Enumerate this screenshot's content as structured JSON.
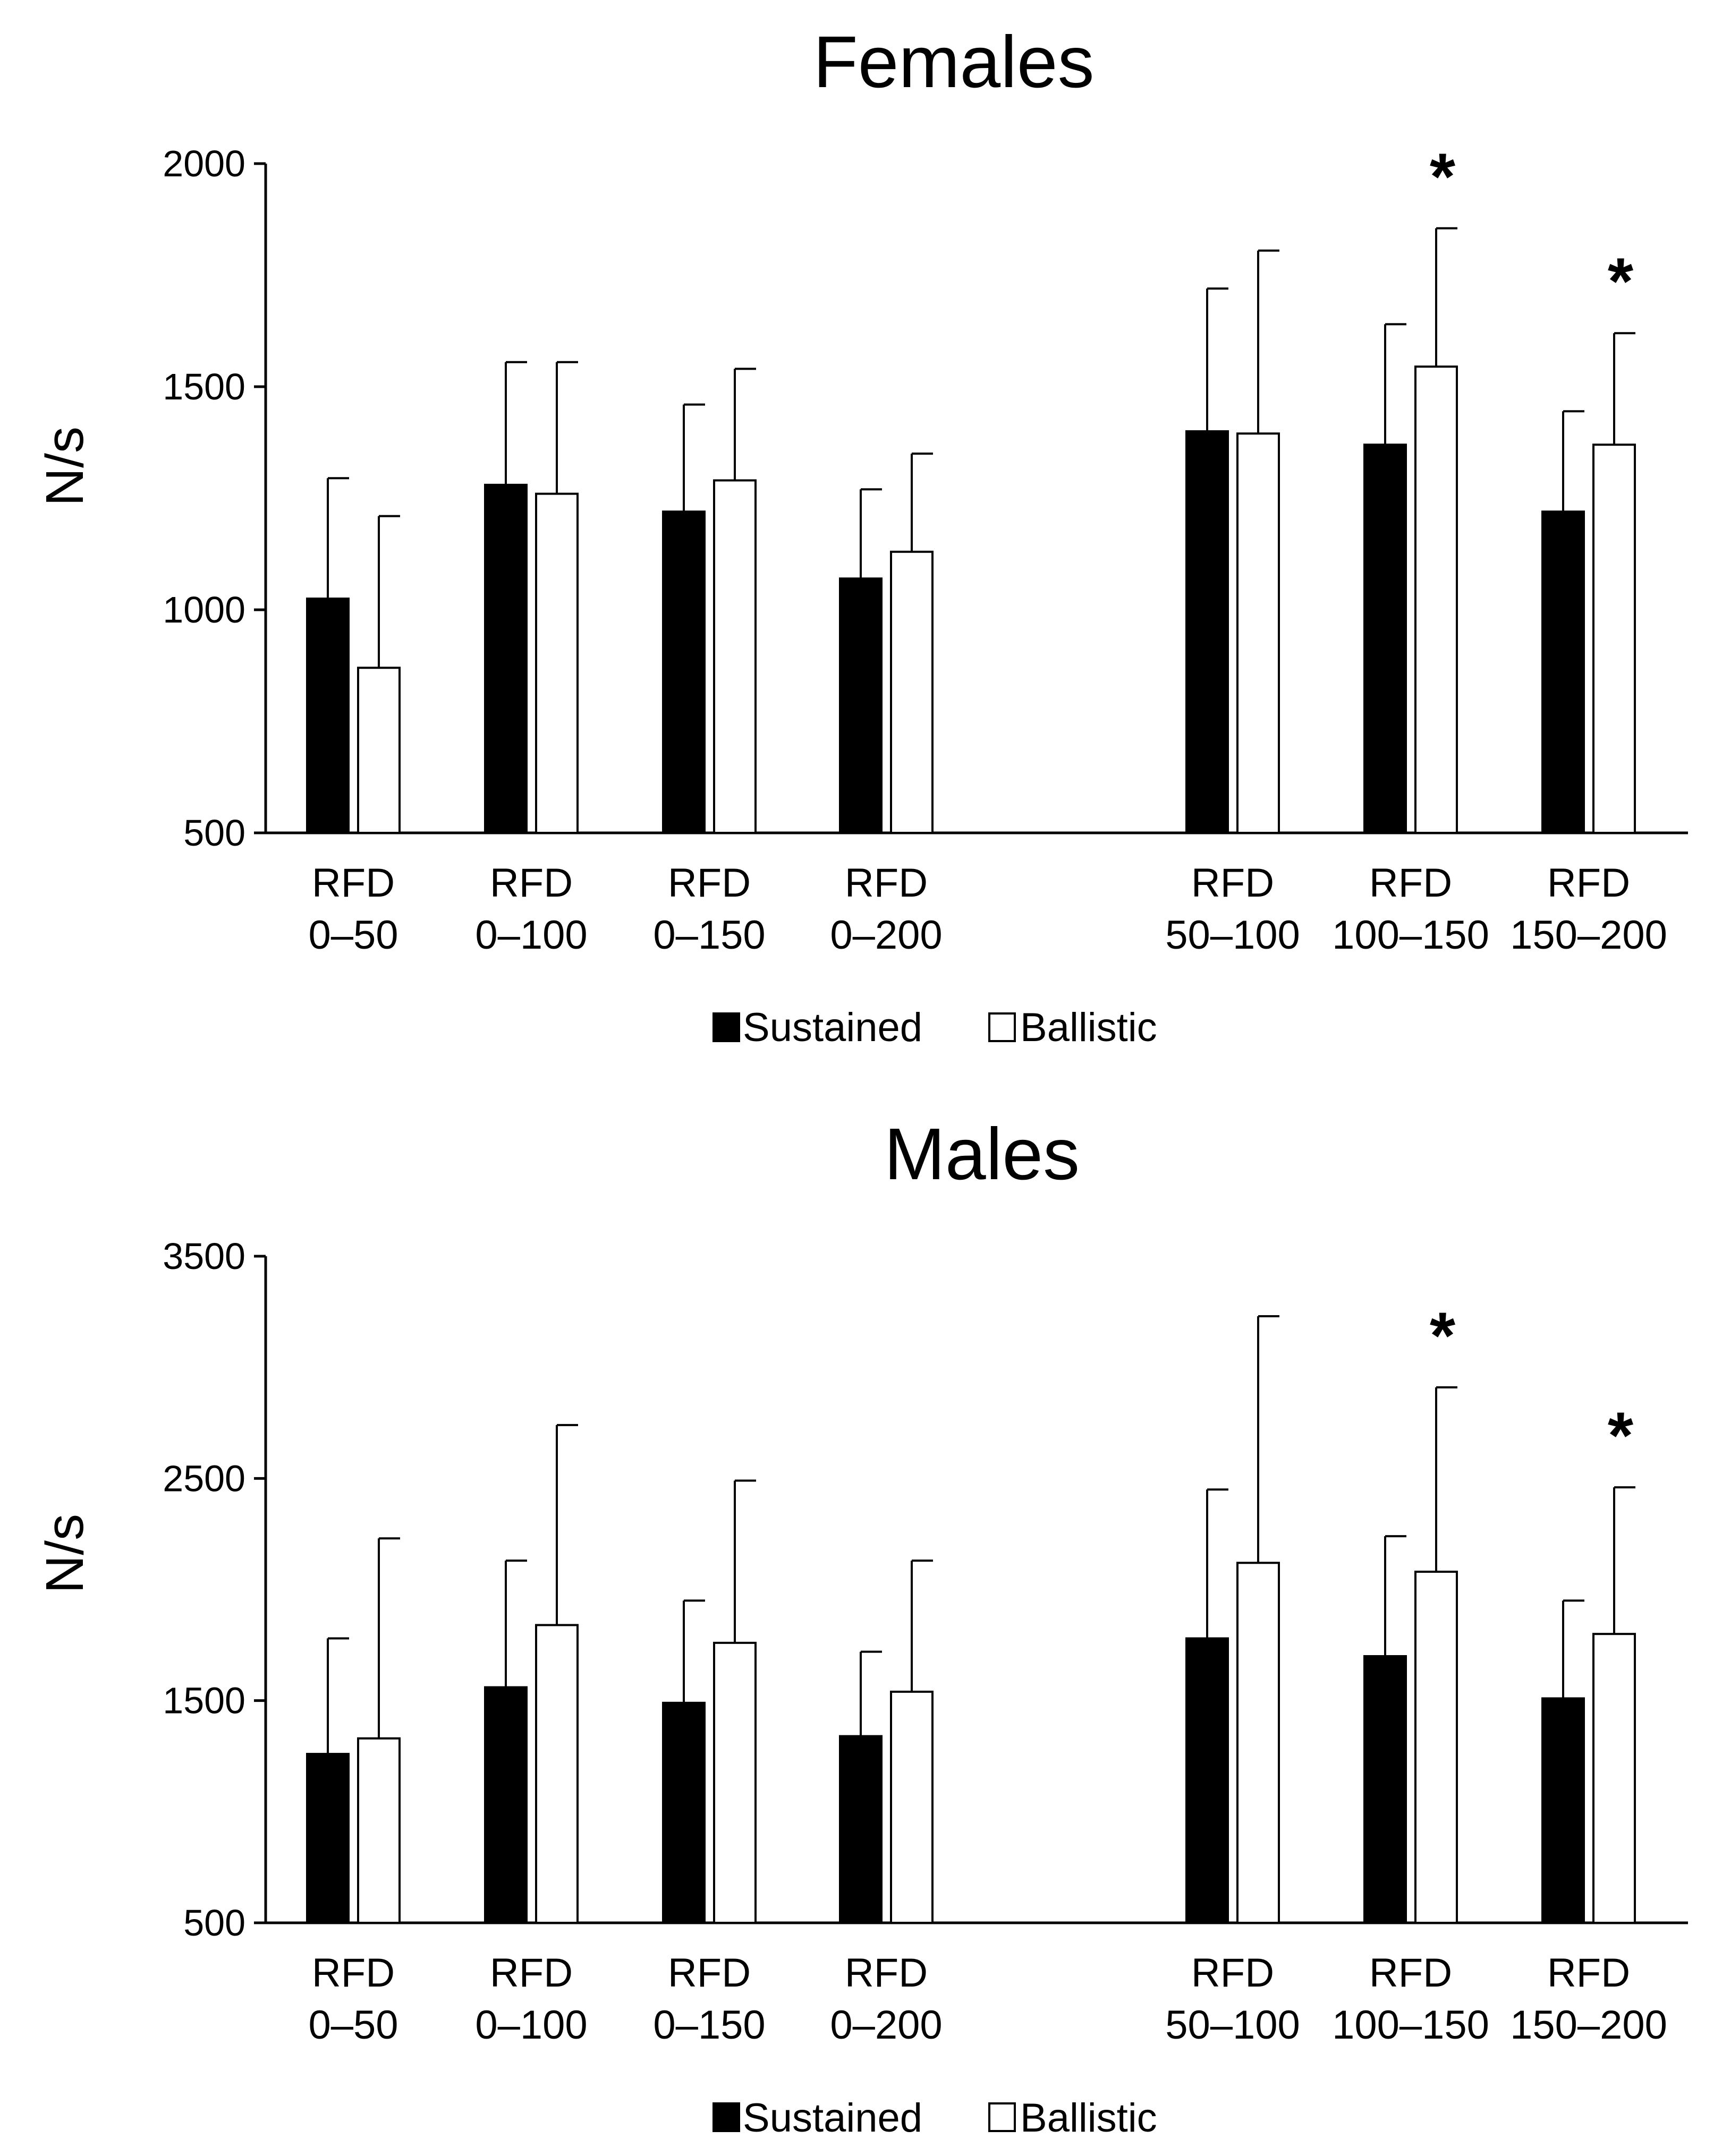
{
  "chart_data": [
    {
      "type": "bar",
      "title": "Females",
      "xlabel": "",
      "ylabel": "N/s",
      "ylim": [
        500,
        2000
      ],
      "yticks": [
        500,
        1000,
        1500,
        2000
      ],
      "yticks_labels": [
        "500",
        "1000",
        "1500",
        "2000"
      ],
      "categories": [
        [
          "RFD",
          "0–50"
        ],
        [
          "RFD",
          "0–100"
        ],
        [
          "RFD",
          "0–150"
        ],
        [
          "RFD",
          "0–200"
        ],
        [
          "RFD",
          "50–100"
        ],
        [
          "RFD",
          "100–150"
        ],
        [
          "RFD",
          "150–200"
        ]
      ],
      "series": [
        {
          "name": "Sustained",
          "color": "#000000",
          "values": [
            1025,
            1280,
            1220,
            1070,
            1400,
            1370,
            1220
          ],
          "errors": [
            270,
            275,
            240,
            200,
            320,
            270,
            225
          ]
        },
        {
          "name": "Ballistic",
          "color": "#ffffff",
          "values": [
            870,
            1260,
            1290,
            1130,
            1395,
            1545,
            1370
          ],
          "errors": [
            340,
            295,
            250,
            220,
            410,
            310,
            250
          ]
        }
      ],
      "significant": [
        "",
        "",
        "",
        "",
        "",
        "*",
        "*"
      ],
      "legend": [
        "Sustained",
        "Ballistic"
      ],
      "legend_position": "bottom"
    },
    {
      "type": "bar",
      "title": "Males",
      "xlabel": "",
      "ylabel": "N/s",
      "ylim": [
        500,
        3500
      ],
      "yticks": [
        500,
        1500,
        2500,
        3500
      ],
      "yticks_labels": [
        "500",
        "1500",
        "2500",
        "3500"
      ],
      "categories": [
        [
          "RFD",
          "0–50"
        ],
        [
          "RFD",
          "0–100"
        ],
        [
          "RFD",
          "0–150"
        ],
        [
          "RFD",
          "0–200"
        ],
        [
          "RFD",
          "50–100"
        ],
        [
          "RFD",
          "100–150"
        ],
        [
          "RFD",
          "150–200"
        ]
      ],
      "series": [
        {
          "name": "Sustained",
          "color": "#000000",
          "values": [
            1260,
            1560,
            1490,
            1340,
            1780,
            1700,
            1510
          ],
          "errors": [
            520,
            570,
            460,
            380,
            670,
            540,
            440
          ]
        },
        {
          "name": "Ballistic",
          "color": "#ffffff",
          "values": [
            1330,
            1840,
            1760,
            1540,
            2120,
            2080,
            1800
          ],
          "errors": [
            900,
            900,
            730,
            590,
            1110,
            830,
            660
          ]
        }
      ],
      "significant": [
        "",
        "",
        "",
        "",
        "",
        "*",
        "*"
      ],
      "legend": [
        "Sustained",
        "Ballistic"
      ],
      "legend_position": "bottom"
    }
  ]
}
